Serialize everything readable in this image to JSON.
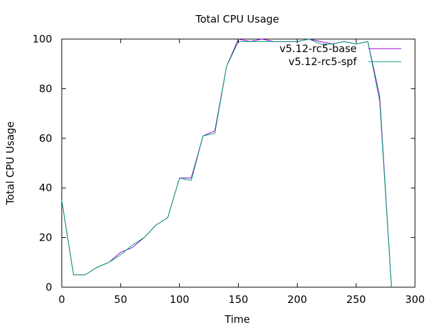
{
  "chart_data": {
    "type": "line",
    "title": "Total CPU Usage",
    "xlabel": "Time",
    "ylabel": "Total CPU Usage",
    "xlim": [
      0,
      300
    ],
    "ylim": [
      0,
      100
    ],
    "xticks": [
      0,
      50,
      100,
      150,
      200,
      250,
      300
    ],
    "yticks": [
      0,
      20,
      40,
      60,
      80,
      100
    ],
    "grid": false,
    "legend_position": "top-right",
    "series": [
      {
        "name": "v5.12-rc5-base",
        "color": "#9400d3",
        "points": [
          [
            0,
            35
          ],
          [
            10,
            5
          ],
          [
            20,
            5
          ],
          [
            30,
            8
          ],
          [
            40,
            10
          ],
          [
            50,
            14
          ],
          [
            60,
            16
          ],
          [
            70,
            20
          ],
          [
            80,
            25
          ],
          [
            90,
            28
          ],
          [
            100,
            44
          ],
          [
            110,
            44
          ],
          [
            120,
            61
          ],
          [
            130,
            63
          ],
          [
            140,
            89
          ],
          [
            150,
            100
          ],
          [
            160,
            99
          ],
          [
            170,
            100
          ],
          [
            180,
            99
          ],
          [
            190,
            99
          ],
          [
            200,
            99
          ],
          [
            210,
            100
          ],
          [
            220,
            99
          ],
          [
            230,
            98
          ],
          [
            240,
            99
          ],
          [
            250,
            98
          ],
          [
            260,
            99
          ],
          [
            270,
            77
          ],
          [
            280,
            0
          ]
        ]
      },
      {
        "name": "v5.12-rc5-spf",
        "color": "#009e73",
        "points": [
          [
            0,
            35
          ],
          [
            10,
            5
          ],
          [
            20,
            5
          ],
          [
            30,
            8
          ],
          [
            40,
            10
          ],
          [
            50,
            13
          ],
          [
            60,
            17
          ],
          [
            70,
            20
          ],
          [
            80,
            25
          ],
          [
            90,
            28
          ],
          [
            100,
            44
          ],
          [
            110,
            43
          ],
          [
            120,
            61
          ],
          [
            130,
            62
          ],
          [
            140,
            89
          ],
          [
            150,
            99
          ],
          [
            160,
            99
          ],
          [
            170,
            99
          ],
          [
            180,
            99
          ],
          [
            190,
            99
          ],
          [
            200,
            99
          ],
          [
            210,
            100
          ],
          [
            220,
            98
          ],
          [
            230,
            98
          ],
          [
            240,
            99
          ],
          [
            250,
            98
          ],
          [
            260,
            99
          ],
          [
            270,
            75
          ],
          [
            280,
            0
          ]
        ]
      }
    ]
  }
}
